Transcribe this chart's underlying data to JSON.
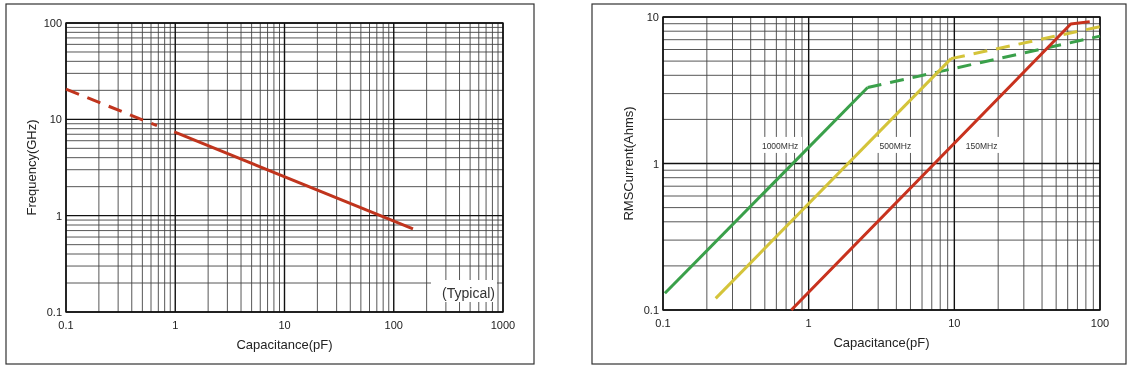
{
  "chart_data": [
    {
      "type": "line",
      "xlabel": "Capacitance(pF)",
      "ylabel": "Frequency(GHz)",
      "log": "xy",
      "grid": true,
      "xlim": [
        0.1,
        1000
      ],
      "xticks": [
        0.1,
        1,
        10,
        100,
        1000
      ],
      "ylim": [
        0.1,
        100
      ],
      "yticks": [
        0.1,
        1,
        10,
        100
      ],
      "annotations": [
        "(Typical)"
      ],
      "series": [
        {
          "color": "#c0341d",
          "line_style": "dashed",
          "x": [
            0.1,
            0.68
          ],
          "values": [
            20.6,
            8.6
          ]
        },
        {
          "color": "#c0341d",
          "line_style": "solid",
          "x": [
            0.98,
            150
          ],
          "values": [
            7.4,
            0.73
          ]
        }
      ]
    },
    {
      "type": "line",
      "xlabel": "Capacitance(pF)",
      "ylabel": "RMSCurrent(Ahms)",
      "log": "xy",
      "grid": true,
      "xlim": [
        0.1,
        100
      ],
      "xticks": [
        0.1,
        1,
        10,
        100
      ],
      "ylim": [
        0.1,
        10
      ],
      "yticks": [
        0.1,
        1,
        10
      ],
      "series": [
        {
          "name": "1000MHz",
          "color": "#3aa04a",
          "line_style": "solid",
          "x": [
            0.103,
            2.54
          ],
          "values": [
            0.13,
            3.3
          ]
        },
        {
          "color": "#3aa04a",
          "line_style": "dashed",
          "x": [
            2.54,
            100
          ],
          "values": [
            3.3,
            7.4
          ]
        },
        {
          "name": "500MHz",
          "color": "#d4c43a",
          "line_style": "solid",
          "x": [
            0.23,
            9.5
          ],
          "values": [
            0.12,
            5.2
          ]
        },
        {
          "color": "#d4c43a",
          "line_style": "dashed",
          "x": [
            9.5,
            100
          ],
          "values": [
            5.2,
            8.6
          ]
        },
        {
          "name": "150MHz",
          "color": "#c8321e",
          "line_style": "solid",
          "x": [
            0.76,
            63,
            85
          ],
          "values": [
            0.1,
            8.95,
            9.3
          ]
        }
      ]
    }
  ]
}
